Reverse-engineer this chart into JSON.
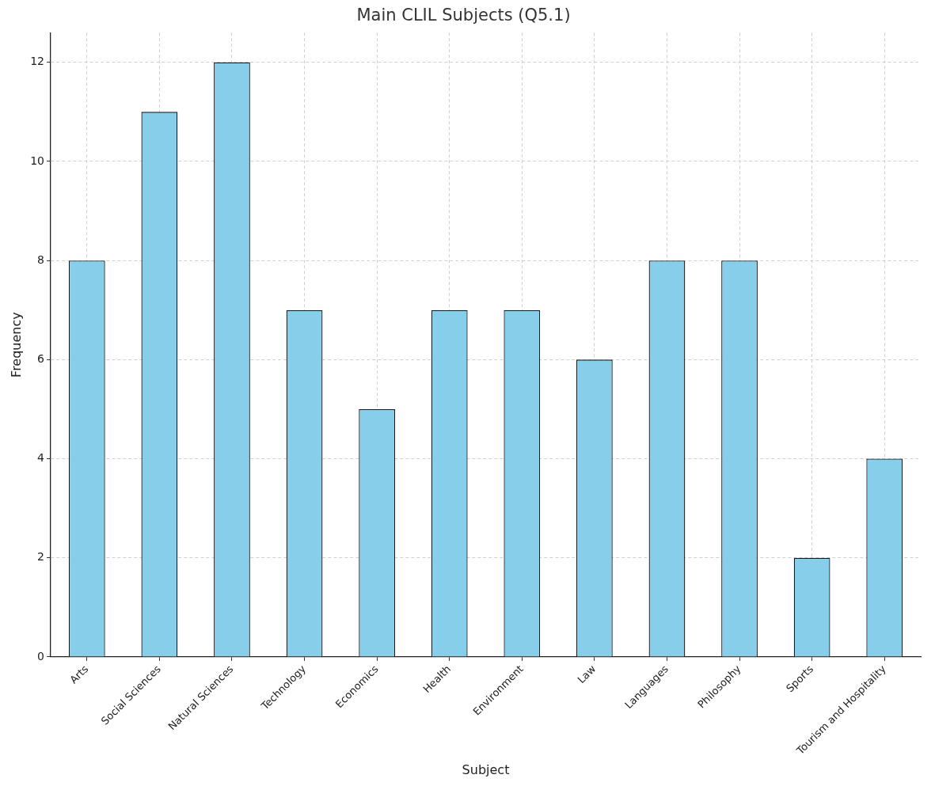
{
  "chart_data": {
    "type": "bar",
    "title": "Main CLIL Subjects (Q5.1)",
    "xlabel": "Subject",
    "ylabel": "Frequency",
    "categories": [
      "Arts",
      "Social Sciences",
      "Natural Sciences",
      "Technology",
      "Economics",
      "Health",
      "Environment",
      "Law",
      "Languages",
      "Philosophy",
      "Sports",
      "Tourism and Hospitality"
    ],
    "values": [
      8,
      11,
      12,
      7,
      5,
      7,
      7,
      6,
      8,
      8,
      2,
      4
    ],
    "color": "#87ceeb",
    "ylim": [
      0,
      12.6
    ],
    "yticks": [
      0,
      2,
      4,
      6,
      8,
      10,
      12
    ],
    "grid": true
  }
}
